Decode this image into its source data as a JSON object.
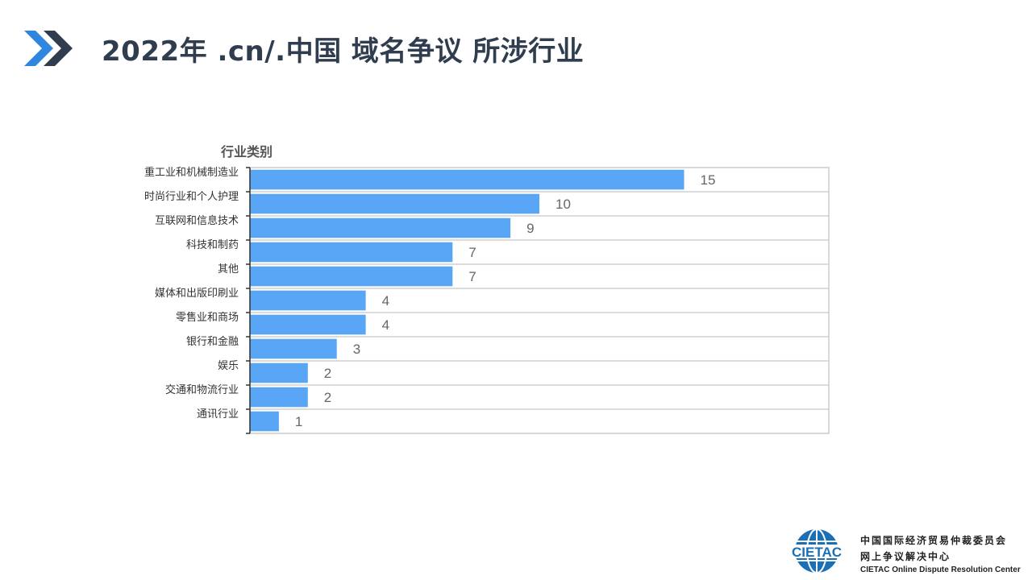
{
  "header": {
    "title": "2022年 .cn/.中国 域名争议 所涉行业",
    "icon": "double-chevron-icon"
  },
  "chart_data": {
    "type": "bar",
    "orientation": "horizontal",
    "ylabel": "行业类别",
    "categories": [
      "重工业和机械制造业",
      "时尚行业和个人护理",
      "互联网和信息技术",
      "科技和制药",
      "其他",
      "媒体和出版印刷业",
      "零售业和商场",
      "银行和金融",
      "娱乐",
      "交通和物流行业",
      "通讯行业"
    ],
    "values": [
      15,
      10,
      9,
      7,
      7,
      4,
      4,
      3,
      2,
      2,
      1
    ],
    "xlim": [
      0,
      20
    ],
    "grid": true,
    "legend": "none",
    "bar_color": "#58a6f5"
  },
  "logo": {
    "acronym": "CIETAC",
    "name_cn_line1": "中国国际经济贸易仲裁委员会",
    "name_cn_line2": "网上争议解决中心",
    "name_en": "CIETAC Online Dispute Resolution Center"
  }
}
